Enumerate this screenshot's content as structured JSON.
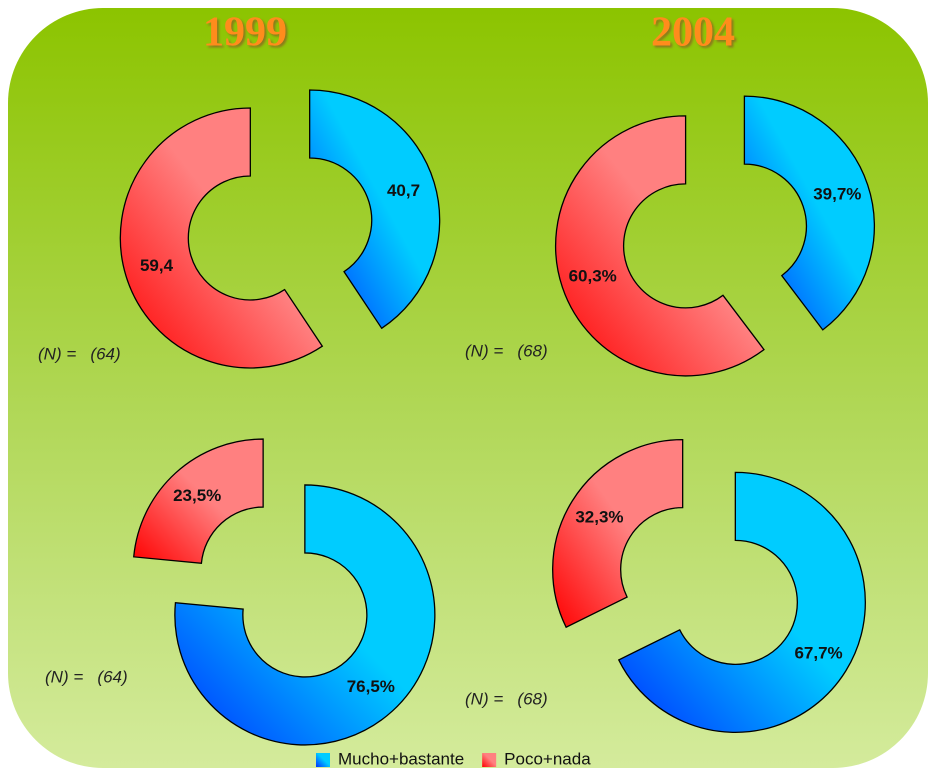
{
  "chart_data": [
    {
      "type": "donut",
      "title": "1999",
      "categories": [
        "Mucho+bastante",
        "Poco+nada"
      ],
      "colors": [
        "#00ccff",
        "#ff8080"
      ],
      "shades": [
        "#0030ff",
        "#ff0000"
      ],
      "values": [
        40.7,
        59.4
      ],
      "value_labels": [
        "40,7",
        "59,4"
      ],
      "note": "(N) =   (64)"
    },
    {
      "type": "donut",
      "title": "2004",
      "values": [
        39.7,
        60.3
      ],
      "value_labels": [
        "39,7%",
        "60,3%"
      ],
      "note": "(N) =   (68)"
    },
    {
      "type": "donut",
      "values": [
        76.5,
        23.5
      ],
      "value_labels": [
        "76,5%",
        "23,5%"
      ],
      "note": "(N) =   (64)"
    },
    {
      "type": "donut",
      "values": [
        67.7,
        32.3
      ],
      "value_labels": [
        "67,7%",
        "32,3%"
      ],
      "note": "(N) =   (68)"
    }
  ]
}
